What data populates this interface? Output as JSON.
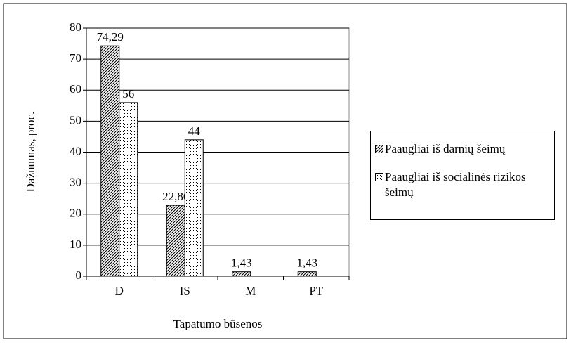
{
  "chart_data": {
    "type": "bar",
    "categories": [
      "D",
      "IS",
      "M",
      "PT"
    ],
    "series": [
      {
        "name": "Paaugliai iš darnių šeimų",
        "color": "#000000",
        "pattern": "hatch",
        "values": [
          74.29,
          22.86,
          1.43,
          1.43
        ],
        "value_labels": [
          "74,29",
          "22,86",
          "1,43",
          "1,43"
        ]
      },
      {
        "name": "Paaugliai iš socialinės rizikos šeimų",
        "color": "#000000",
        "pattern": "dots",
        "values": [
          56,
          44,
          null,
          null
        ],
        "value_labels": [
          "56",
          "44",
          null,
          null
        ]
      }
    ],
    "y_label": "Dažnumas, proc.",
    "x_label": "Tapatumo būsenos",
    "ylim": [
      0,
      80
    ],
    "yticks": [
      0,
      10,
      20,
      30,
      40,
      50,
      60,
      70,
      80
    ],
    "grid": true,
    "legend": "right"
  }
}
